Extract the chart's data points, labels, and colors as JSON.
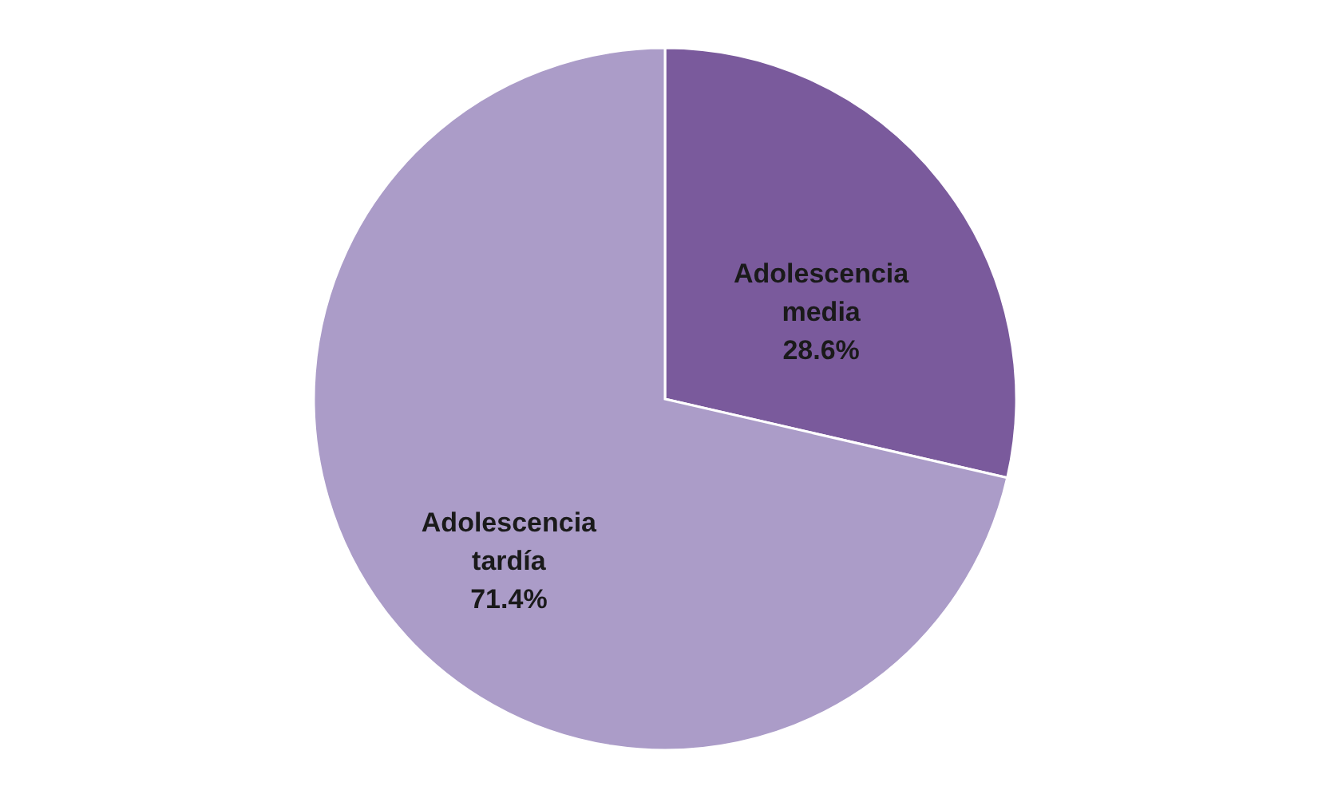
{
  "chart_data": {
    "type": "pie",
    "categories": [
      "Adolescencia media",
      "Adolescencia tardía"
    ],
    "values": [
      28.6,
      71.4
    ],
    "colors": [
      "#7a5a9c",
      "#ab9cc8"
    ],
    "value_labels": [
      "28.6%",
      "71.4%"
    ],
    "legend": false
  }
}
